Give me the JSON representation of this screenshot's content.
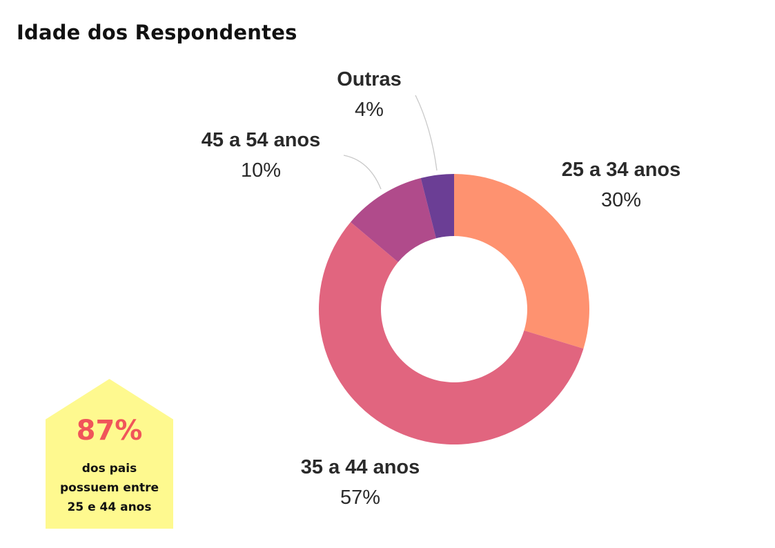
{
  "chart_data": {
    "type": "pie",
    "title": "Idade dos Respondentes",
    "categories": [
      "25 a 34 anos",
      "35 a 44 anos",
      "45 a 54 anos",
      "Outras"
    ],
    "values": [
      30,
      57,
      10,
      4
    ],
    "value_labels": [
      "30%",
      "57%",
      "10%",
      "4%"
    ],
    "colors": [
      "#fe9270",
      "#e1657f",
      "#b04b8b",
      "#6b3e95"
    ],
    "donut": true,
    "legend": "none (labels placed around the chart)"
  },
  "callout": {
    "value": "87%",
    "lines": [
      "dos pais",
      "possuem entre",
      "25 e 44 anos"
    ],
    "background": "#fef98f",
    "value_color": "#f0555a"
  }
}
